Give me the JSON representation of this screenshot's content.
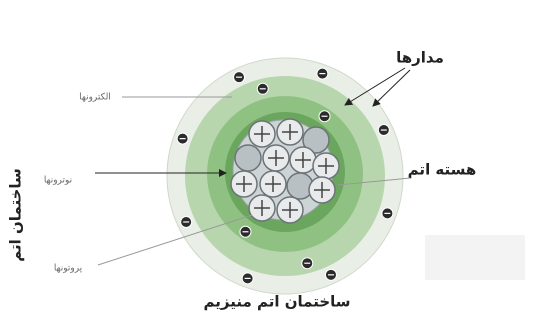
{
  "title": "ساختمان اتم منیزیم",
  "side_label": "ساختمان اتم",
  "labels": {
    "orbits": "مدارها",
    "nucleus": "هسته اتم",
    "electrons": "الکترونها",
    "neutrons": "نوترونها",
    "protons": "پروتونها"
  }
}
